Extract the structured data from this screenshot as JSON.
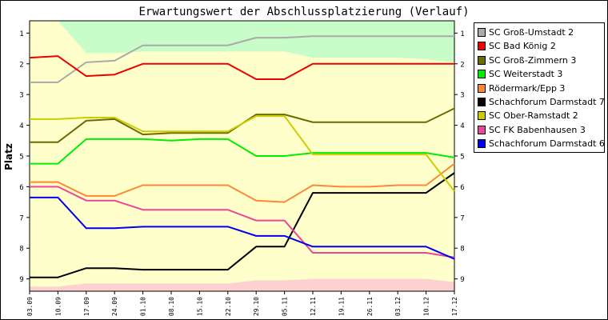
{
  "chart_data": {
    "type": "line",
    "title": "Erwartungswert der Abschlussplatzierung (Verlauf)",
    "ylabel": "Platz",
    "xlabel": "",
    "ylim": [
      0.6,
      9.4
    ],
    "y_inverted": true,
    "yticks": [
      1,
      2,
      3,
      4,
      5,
      6,
      7,
      8,
      9
    ],
    "categories": [
      "03.09",
      "10.09",
      "17.09",
      "24.09",
      "01.10",
      "08.10",
      "15.10",
      "22.10",
      "29.10",
      "05.11",
      "12.11",
      "19.11",
      "26.11",
      "03.12",
      "10.12",
      "17.12"
    ],
    "grid": false,
    "legend_position": "right",
    "series": [
      {
        "name": "SC Groß-Umstadt 2",
        "color": "#aaaaaa",
        "values": [
          2.6,
          2.6,
          1.95,
          1.9,
          1.4,
          1.4,
          1.4,
          1.4,
          1.15,
          1.15,
          1.1,
          1.1,
          1.1,
          1.1,
          1.1,
          1.1
        ]
      },
      {
        "name": "SC Bad König 2",
        "color": "#ee0000",
        "values": [
          1.8,
          1.75,
          2.4,
          2.35,
          2.0,
          2.0,
          2.0,
          2.0,
          2.5,
          2.5,
          2.0,
          2.0,
          2.0,
          2.0,
          2.0,
          2.0
        ]
      },
      {
        "name": "SC Groß-Zimmern 3",
        "color": "#6b6b00",
        "values": [
          4.55,
          4.55,
          3.85,
          3.8,
          4.3,
          4.25,
          4.25,
          4.25,
          3.65,
          3.65,
          3.9,
          3.9,
          3.9,
          3.9,
          3.9,
          3.45
        ]
      },
      {
        "name": "SC Weiterstadt 3",
        "color": "#00ee00",
        "values": [
          5.25,
          5.25,
          4.45,
          4.45,
          4.45,
          4.5,
          4.45,
          4.45,
          5.0,
          5.0,
          4.9,
          4.9,
          4.9,
          4.9,
          4.9,
          5.05
        ]
      },
      {
        "name": "Rödermark/Epp 3",
        "color": "#ff8833",
        "values": [
          5.85,
          5.85,
          6.3,
          6.3,
          5.95,
          5.95,
          5.95,
          5.95,
          6.45,
          6.5,
          5.95,
          6.0,
          6.0,
          5.95,
          5.95,
          5.25
        ]
      },
      {
        "name": "Schachforum Darmstadt 7",
        "color": "#000000",
        "values": [
          8.95,
          8.95,
          8.65,
          8.65,
          8.7,
          8.7,
          8.7,
          8.7,
          7.95,
          7.95,
          6.2,
          6.2,
          6.2,
          6.2,
          6.2,
          5.55
        ]
      },
      {
        "name": "SC Ober-Ramstadt 2",
        "color": "#cccc00",
        "values": [
          3.8,
          3.8,
          3.75,
          3.75,
          4.2,
          4.2,
          4.2,
          4.2,
          3.7,
          3.7,
          4.95,
          4.95,
          4.95,
          4.95,
          4.95,
          6.15
        ]
      },
      {
        "name": "SC FK Babenhausen 3",
        "color": "#ee4499",
        "values": [
          6.0,
          6.0,
          6.45,
          6.45,
          6.75,
          6.75,
          6.75,
          6.75,
          7.1,
          7.1,
          8.15,
          8.15,
          8.15,
          8.15,
          8.15,
          8.3
        ]
      },
      {
        "name": "Schachforum Darmstadt 6",
        "color": "#0000ee",
        "values": [
          6.35,
          6.35,
          7.35,
          7.35,
          7.3,
          7.3,
          7.3,
          7.3,
          7.6,
          7.6,
          7.95,
          7.95,
          7.95,
          7.95,
          7.95,
          8.35
        ]
      }
    ],
    "background_bands": {
      "colors": {
        "top": "#c8fcc8",
        "middle": "#ffffcc",
        "bottom": "#ffd0d0"
      },
      "top_boundary": [
        0.6,
        0.6,
        1.65,
        1.65,
        1.6,
        1.6,
        1.6,
        1.6,
        1.6,
        1.6,
        1.8,
        1.8,
        1.8,
        1.8,
        1.85,
        1.95
      ],
      "bottom_boundary": [
        9.25,
        9.25,
        9.15,
        9.15,
        9.15,
        9.15,
        9.15,
        9.15,
        9.05,
        9.05,
        9.0,
        9.0,
        9.0,
        9.0,
        9.0,
        9.1
      ]
    }
  }
}
